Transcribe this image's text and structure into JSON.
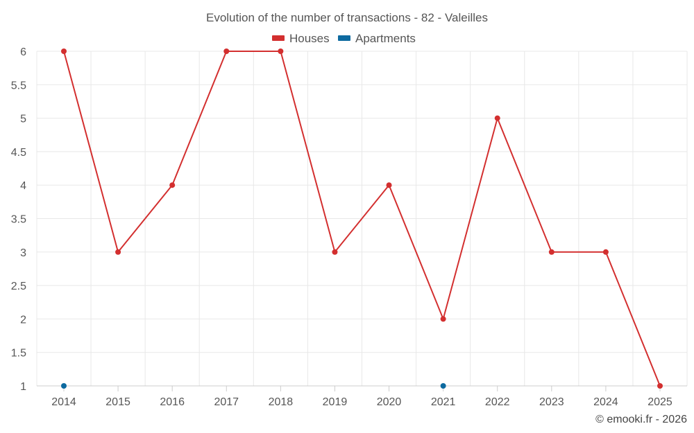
{
  "chart_data": {
    "type": "line",
    "title": "Evolution of the number of transactions - 82 - Valeilles",
    "xlabel": "",
    "ylabel": "",
    "categories": [
      "2014",
      "2015",
      "2016",
      "2017",
      "2018",
      "2019",
      "2020",
      "2021",
      "2022",
      "2023",
      "2024",
      "2025"
    ],
    "ylim": [
      1,
      6
    ],
    "yticks": [
      "1",
      "1.5",
      "2",
      "2.5",
      "3",
      "3.5",
      "4",
      "4.5",
      "5",
      "5.5",
      "6"
    ],
    "grid": true,
    "legend_position": "top-center",
    "series": [
      {
        "name": "Houses",
        "color": "#d32f2f",
        "line": true,
        "values": [
          6,
          3,
          4,
          6,
          6,
          3,
          4,
          2,
          5,
          3,
          3,
          1
        ]
      },
      {
        "name": "Apartments",
        "color": "#0d6aa0",
        "line": false,
        "values": [
          1,
          null,
          null,
          null,
          null,
          null,
          null,
          1,
          null,
          null,
          null,
          null
        ]
      }
    ]
  },
  "credit": "© emooki.fr - 2026"
}
